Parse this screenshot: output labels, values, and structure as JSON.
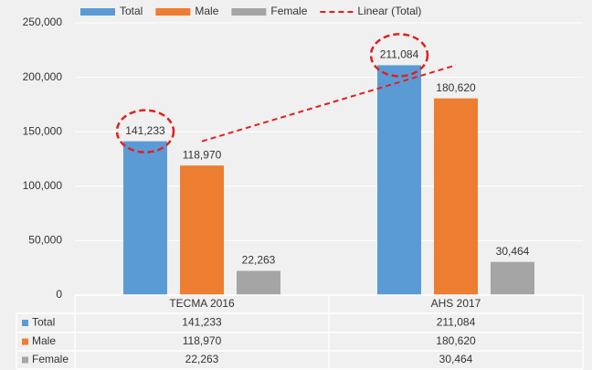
{
  "chart_data": {
    "type": "bar",
    "categories": [
      "TECMA 2016",
      "AHS 2017"
    ],
    "series": [
      {
        "name": "Total",
        "color": "#5b9bd5",
        "values": [
          141233,
          211084
        ],
        "value_labels": [
          "141,233",
          "211,084"
        ]
      },
      {
        "name": "Male",
        "color": "#ed7d31",
        "values": [
          118970,
          180620
        ],
        "value_labels": [
          "118,970",
          "180,620"
        ]
      },
      {
        "name": "Female",
        "color": "#a5a5a5",
        "values": [
          22263,
          30464
        ],
        "value_labels": [
          "22,263",
          "30,464"
        ]
      }
    ],
    "trendline": {
      "name": "Linear (Total)",
      "type": "linear",
      "series": 0,
      "color": "#e02020"
    },
    "ylim": [
      0,
      250000
    ],
    "yticks": [
      0,
      {
        "value": 50000,
        "label": "50,000"
      },
      {
        "value": 100000,
        "label": "100,000"
      },
      {
        "value": 150000,
        "label": "150,000"
      },
      {
        "value": 200000,
        "label": "200,000"
      },
      {
        "value": 250000,
        "label": "250,000"
      }
    ],
    "grid": true,
    "legend": "top",
    "data_table": true
  }
}
